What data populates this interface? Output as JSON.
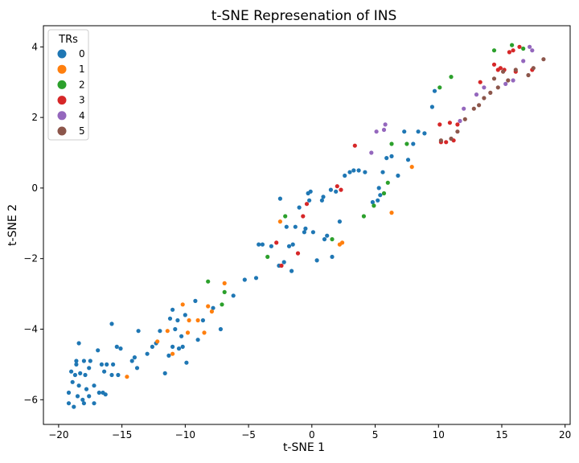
{
  "chart_data": {
    "type": "scatter",
    "title": "t-SNE Represenation of INS",
    "xlabel": "t-SNE 1",
    "ylabel": "t-SNE 2",
    "xlim": [
      -21.2,
      20.4
    ],
    "ylim": [
      -6.7,
      4.6
    ],
    "xticks": [
      -20,
      -15,
      -10,
      -5,
      0,
      5,
      10,
      15,
      20
    ],
    "xtick_labels": [
      "−20",
      "−15",
      "−10",
      "−5",
      "0",
      "5",
      "10",
      "15",
      "20"
    ],
    "yticks": [
      -6,
      -4,
      -2,
      0,
      2,
      4
    ],
    "ytick_labels": [
      "−6",
      "−4",
      "−2",
      "0",
      "2",
      "4"
    ],
    "grid": false,
    "legend": {
      "title": "TRs",
      "position": "top-left"
    },
    "series": [
      {
        "name": "0",
        "color": "#1f77b4",
        "points": [
          [
            -19.2,
            -5.8
          ],
          [
            -19.2,
            -6.1
          ],
          [
            -18.8,
            -6.2
          ],
          [
            -18.5,
            -5.9
          ],
          [
            -18.1,
            -6.0
          ],
          [
            -18.0,
            -6.1
          ],
          [
            -17.6,
            -5.9
          ],
          [
            -17.2,
            -6.1
          ],
          [
            -17.2,
            -5.6
          ],
          [
            -16.8,
            -5.8
          ],
          [
            -16.5,
            -5.8
          ],
          [
            -16.3,
            -5.85
          ],
          [
            -16.6,
            -5.0
          ],
          [
            -16.9,
            -4.6
          ],
          [
            -17.5,
            -4.9
          ],
          [
            -18.0,
            -4.9
          ],
          [
            -18.6,
            -5.0
          ],
          [
            -19.0,
            -5.2
          ],
          [
            -18.7,
            -5.3
          ],
          [
            -18.3,
            -5.25
          ],
          [
            -17.9,
            -5.3
          ],
          [
            -17.6,
            -5.1
          ],
          [
            -18.9,
            -5.5
          ],
          [
            -18.4,
            -5.6
          ],
          [
            -17.8,
            -5.7
          ],
          [
            -18.4,
            -4.4
          ],
          [
            -18.6,
            -4.9
          ],
          [
            -16.4,
            -5.2
          ],
          [
            -16.2,
            -5.0
          ],
          [
            -15.8,
            -5.3
          ],
          [
            -15.3,
            -5.3
          ],
          [
            -15.7,
            -5.0
          ],
          [
            -15.4,
            -4.5
          ],
          [
            -15.1,
            -4.55
          ],
          [
            -15.8,
            -3.85
          ],
          [
            -14.2,
            -4.9
          ],
          [
            -14.0,
            -4.8
          ],
          [
            -13.8,
            -5.1
          ],
          [
            -13.7,
            -4.05
          ],
          [
            -13.0,
            -4.7
          ],
          [
            -12.6,
            -4.5
          ],
          [
            -12.3,
            -4.4
          ],
          [
            -12.0,
            -4.05
          ],
          [
            -11.6,
            -5.25
          ],
          [
            -11.3,
            -4.75
          ],
          [
            -11.0,
            -4.5
          ],
          [
            -11.2,
            -3.7
          ],
          [
            -11.0,
            -3.45
          ],
          [
            -10.8,
            -4.0
          ],
          [
            -10.5,
            -4.55
          ],
          [
            -10.6,
            -3.75
          ],
          [
            -10.3,
            -4.2
          ],
          [
            -10.2,
            -4.5
          ],
          [
            -9.9,
            -4.95
          ],
          [
            -10.0,
            -3.6
          ],
          [
            -9.2,
            -3.2
          ],
          [
            -9.0,
            -4.3
          ],
          [
            -8.6,
            -3.75
          ],
          [
            -7.8,
            -3.4
          ],
          [
            -7.2,
            -4.0
          ],
          [
            -6.2,
            -3.05
          ],
          [
            -5.3,
            -2.6
          ],
          [
            -4.4,
            -2.55
          ],
          [
            -4.2,
            -1.6
          ],
          [
            -3.9,
            -1.6
          ],
          [
            -3.2,
            -1.65
          ],
          [
            -2.6,
            -2.2
          ],
          [
            -2.2,
            -2.1
          ],
          [
            -2.5,
            -0.3
          ],
          [
            -2.0,
            -1.1
          ],
          [
            -1.8,
            -1.65
          ],
          [
            -1.6,
            -2.35
          ],
          [
            -1.5,
            -1.6
          ],
          [
            -1.3,
            -1.1
          ],
          [
            -1.0,
            -0.55
          ],
          [
            -0.6,
            -1.25
          ],
          [
            -0.5,
            -1.15
          ],
          [
            -0.3,
            -0.15
          ],
          [
            -0.2,
            -0.35
          ],
          [
            -0.1,
            -0.1
          ],
          [
            0.1,
            -1.25
          ],
          [
            0.4,
            -2.05
          ],
          [
            0.8,
            -0.35
          ],
          [
            0.9,
            -0.25
          ],
          [
            1.0,
            -1.45
          ],
          [
            1.2,
            -1.35
          ],
          [
            1.5,
            -0.05
          ],
          [
            1.6,
            -1.95
          ],
          [
            1.9,
            -0.1
          ],
          [
            2.2,
            -0.95
          ],
          [
            2.6,
            0.35
          ],
          [
            3.0,
            0.45
          ],
          [
            3.3,
            0.5
          ],
          [
            3.7,
            0.5
          ],
          [
            4.2,
            0.45
          ],
          [
            4.8,
            -0.4
          ],
          [
            5.2,
            -0.35
          ],
          [
            5.4,
            -0.2
          ],
          [
            5.3,
            0.0
          ],
          [
            5.6,
            0.45
          ],
          [
            5.9,
            0.85
          ],
          [
            6.3,
            0.9
          ],
          [
            6.8,
            0.35
          ],
          [
            7.3,
            1.6
          ],
          [
            7.6,
            0.8
          ],
          [
            8.0,
            1.25
          ],
          [
            8.4,
            1.6
          ],
          [
            8.9,
            1.55
          ],
          [
            9.5,
            2.3
          ],
          [
            9.7,
            2.75
          ]
        ]
      },
      {
        "name": "1",
        "color": "#ff7f0e",
        "points": [
          [
            -14.6,
            -5.35
          ],
          [
            -12.2,
            -4.35
          ],
          [
            -11.4,
            -4.05
          ],
          [
            -11.0,
            -4.7
          ],
          [
            -10.2,
            -3.3
          ],
          [
            -9.8,
            -4.1
          ],
          [
            -9.7,
            -3.75
          ],
          [
            -9.0,
            -3.75
          ],
          [
            -8.5,
            -4.1
          ],
          [
            -8.2,
            -3.35
          ],
          [
            -7.9,
            -3.5
          ],
          [
            -6.9,
            -2.7
          ],
          [
            -2.5,
            -0.95
          ],
          [
            2.2,
            -1.6
          ],
          [
            2.4,
            -1.55
          ],
          [
            6.3,
            -0.7
          ],
          [
            7.9,
            0.6
          ]
        ]
      },
      {
        "name": "2",
        "color": "#2ca02c",
        "points": [
          [
            -8.2,
            -2.65
          ],
          [
            -7.1,
            -3.3
          ],
          [
            -6.9,
            -2.95
          ],
          [
            -3.5,
            -1.95
          ],
          [
            -2.1,
            -0.8
          ],
          [
            1.6,
            -1.45
          ],
          [
            4.1,
            -0.8
          ],
          [
            4.9,
            -0.5
          ],
          [
            5.7,
            -0.15
          ],
          [
            6.0,
            0.15
          ],
          [
            6.3,
            1.25
          ],
          [
            7.5,
            1.25
          ],
          [
            10.1,
            2.85
          ],
          [
            11.0,
            3.15
          ],
          [
            14.4,
            3.9
          ],
          [
            15.8,
            4.05
          ],
          [
            16.7,
            3.95
          ]
        ]
      },
      {
        "name": "3",
        "color": "#d62728",
        "points": [
          [
            -2.8,
            -1.55
          ],
          [
            -2.4,
            -2.2
          ],
          [
            -1.1,
            -1.85
          ],
          [
            -0.7,
            -0.8
          ],
          [
            -0.4,
            -0.45
          ],
          [
            2.0,
            0.05
          ],
          [
            2.3,
            -0.05
          ],
          [
            3.4,
            1.2
          ],
          [
            10.1,
            1.8
          ],
          [
            10.2,
            1.3
          ],
          [
            10.6,
            1.3
          ],
          [
            10.9,
            1.85
          ],
          [
            11.2,
            1.35
          ],
          [
            11.5,
            1.8
          ],
          [
            13.3,
            3.0
          ],
          [
            14.4,
            3.5
          ],
          [
            14.7,
            3.35
          ],
          [
            14.9,
            3.4
          ],
          [
            15.2,
            3.35
          ],
          [
            15.6,
            3.85
          ],
          [
            15.9,
            3.9
          ],
          [
            16.1,
            3.3
          ],
          [
            16.4,
            4.0
          ],
          [
            17.4,
            3.35
          ]
        ]
      },
      {
        "name": "4",
        "color": "#9467bd",
        "points": [
          [
            4.7,
            1.0
          ],
          [
            5.1,
            1.6
          ],
          [
            5.7,
            1.65
          ],
          [
            5.8,
            1.8
          ],
          [
            11.7,
            1.9
          ],
          [
            12.0,
            2.25
          ],
          [
            13.0,
            2.65
          ],
          [
            13.6,
            2.85
          ],
          [
            15.3,
            2.95
          ],
          [
            15.9,
            3.05
          ],
          [
            16.7,
            3.6
          ],
          [
            17.2,
            4.0
          ],
          [
            17.4,
            3.9
          ]
        ]
      },
      {
        "name": "5",
        "color": "#8c564b",
        "points": [
          [
            10.2,
            1.35
          ],
          [
            11.0,
            1.4
          ],
          [
            11.5,
            1.6
          ],
          [
            12.1,
            1.95
          ],
          [
            12.8,
            2.25
          ],
          [
            13.2,
            2.35
          ],
          [
            13.6,
            2.55
          ],
          [
            14.1,
            2.7
          ],
          [
            14.4,
            3.1
          ],
          [
            14.7,
            2.85
          ],
          [
            15.1,
            3.3
          ],
          [
            15.5,
            3.05
          ],
          [
            16.1,
            3.35
          ],
          [
            17.1,
            3.2
          ],
          [
            17.5,
            3.4
          ],
          [
            18.3,
            3.65
          ]
        ]
      }
    ]
  }
}
